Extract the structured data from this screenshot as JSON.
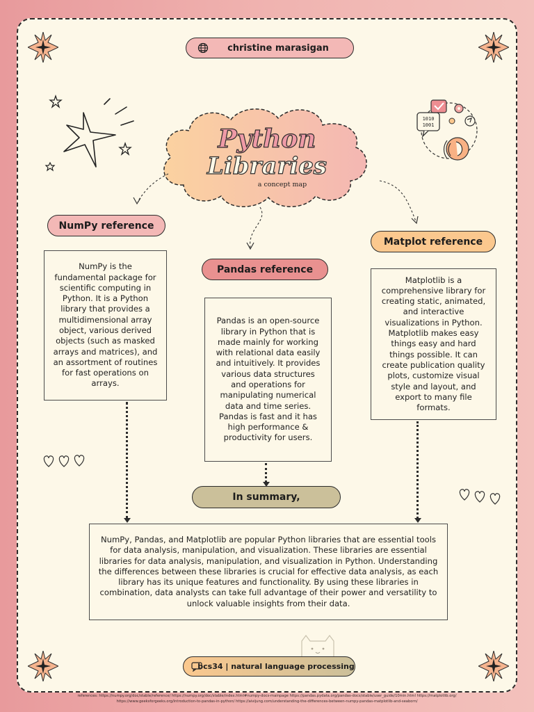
{
  "author": "christine marasigan",
  "title": {
    "line1": "Python",
    "line2": "Libraries",
    "subtitle": "a concept map"
  },
  "numpy": {
    "label": "NumPy reference",
    "text": "NumPy is the fundamental package for scientific computing in Python. It is a Python library that provides a multidimensional array object, various derived objects (such as masked arrays and matrices), and an assortment of routines for fast operations on arrays."
  },
  "pandas": {
    "label": "Pandas reference",
    "text": "Pandas is an open-source library in Python that is made mainly for working with relational data easily and intuitively. It provides various data structures and operations for manipulating numerical data and time series. Pandas is fast and it has high performance & productivity for users."
  },
  "matplot": {
    "label": "Matplot reference",
    "text": "Matplotlib is a comprehensive library for creating static, animated, and interactive visualizations in Python. Matplotlib makes easy things easy and hard things possible. It can create publication quality plots, customize visual style and layout, and export to many file formats."
  },
  "summary": {
    "label": "In summary,",
    "text": "NumPy, Pandas, and Matplotlib are popular Python libraries that are essential tools for data analysis, manipulation, and visualization. These libraries are essential libraries for data analysis, manipulation, and visualization in Python. Understanding the differences between these libraries is crucial for effective data analysis, as each library has its unique features and functionality. By using these libraries in combination, data analysts can take full advantage of their power and versatility to unlock valuable insights from their data."
  },
  "course": "bcs34 | natural language processing",
  "references": {
    "line1": "references: https://numpy.org/doc/stable/reference/ https://numpy.org/doc/stable/index.html#numpy-docs-mainpage https://pandas.pydata.org/pandas-docs/stable/user_guide/10min.html https://matplotlib.org/",
    "line2": "https://www.geeksforgeeks.org/introduction-to-pandas-in-python/ https://aivijung.com/understanding-the-differences-between-numpy-pandas-matplotlib-and-seaborn/"
  },
  "icons": {
    "globe": "globe-icon",
    "sparkle": "sparkle-icon",
    "star": "star-icon",
    "heart": "heart-icon",
    "cat": "cat-icon",
    "data": "data-analytics-icon",
    "chat": "chat-binary-icon",
    "gear": "gear-icon",
    "check": "checkmark-icon"
  },
  "colors": {
    "pink": "#f3b8b6",
    "rose": "#e99190",
    "orange": "#fbc88e",
    "olive": "#cbc09a",
    "cream": "#fdf8e8",
    "title_fill": "#ee9aa6"
  }
}
